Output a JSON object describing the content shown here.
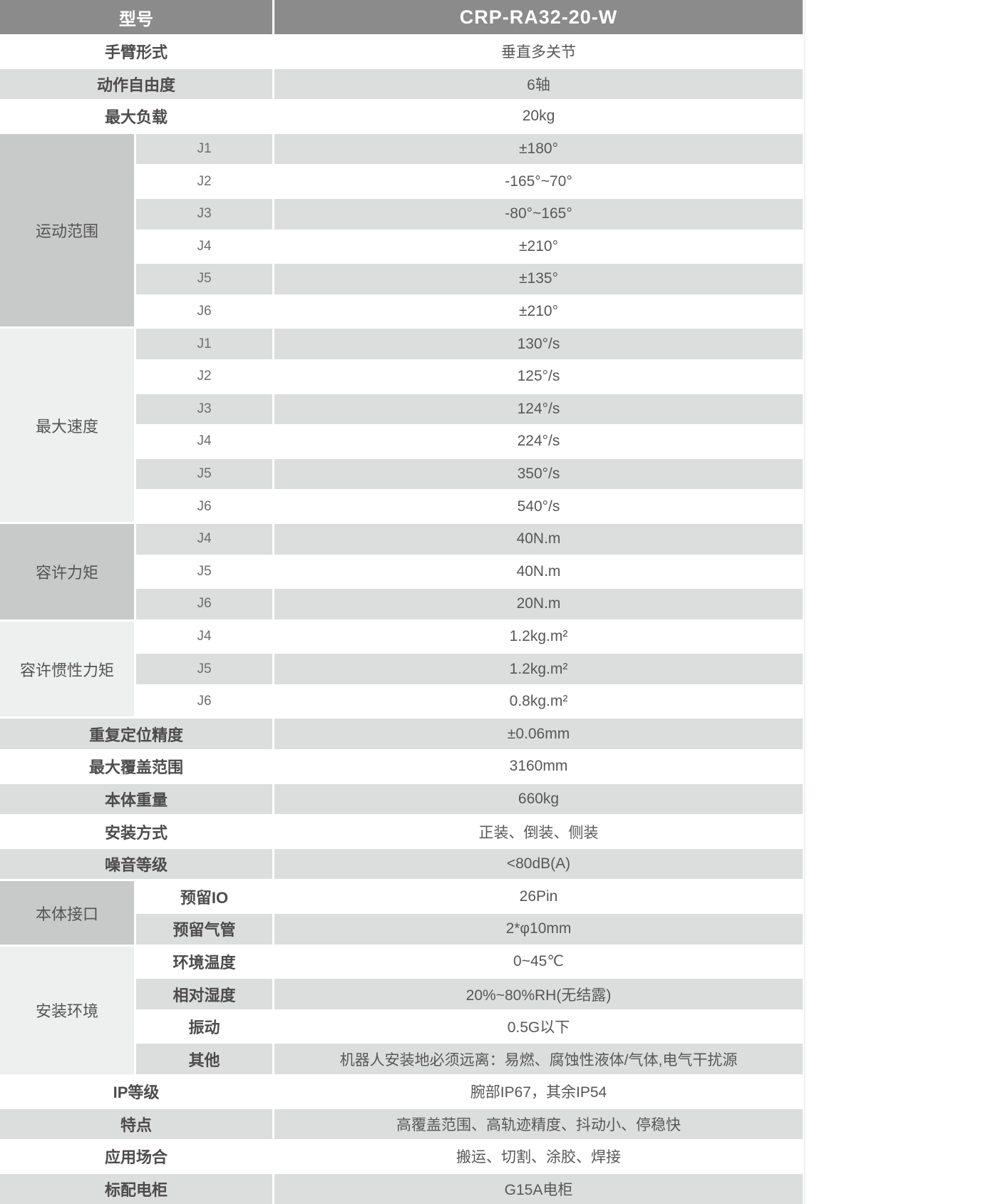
{
  "colors": {
    "header_bg": "#8b8b8b",
    "header_text": "#ffffff",
    "stripe_bg": "#dcdddd",
    "category_dark_bg": "#c8c9c9",
    "category_light_bg": "#eeefef",
    "label_text": "#4d4b4b",
    "value_text": "#595757"
  },
  "header": {
    "label": "型号",
    "value": "CRP-RA32-20-W"
  },
  "rows": {
    "arm_type": {
      "label": "手臂形式",
      "value": "垂直多关节"
    },
    "dof": {
      "label": "动作自由度",
      "value": "6轴"
    },
    "max_payload": {
      "label": "最大负载",
      "value": "20kg"
    },
    "repeatability": {
      "label": "重复定位精度",
      "value": "±0.06mm"
    },
    "max_reach": {
      "label": "最大覆盖范围",
      "value": "3160mm"
    },
    "body_weight": {
      "label": "本体重量",
      "value": "660kg"
    },
    "mounting": {
      "label": "安装方式",
      "value": "正装、倒装、侧装"
    },
    "noise": {
      "label": "噪音等级",
      "value": "<80dB(A)"
    },
    "ip_rating": {
      "label": "IP等级",
      "value": "腕部IP67，其余IP54"
    },
    "features": {
      "label": "特点",
      "value": "高覆盖范围、高轨迹精度、抖动小、停稳快"
    },
    "applications": {
      "label": "应用场合",
      "value": "搬运、切割、涂胶、焊接"
    },
    "cabinet": {
      "label": "标配电柜",
      "value": "G15A电柜"
    }
  },
  "groups": {
    "motion_range": {
      "label": "运动范围",
      "rows": [
        {
          "sub": "J1",
          "value": "±180°"
        },
        {
          "sub": "J2",
          "value": "-165°~70°"
        },
        {
          "sub": "J3",
          "value": "-80°~165°"
        },
        {
          "sub": "J4",
          "value": "±210°"
        },
        {
          "sub": "J5",
          "value": "±135°"
        },
        {
          "sub": "J6",
          "value": "±210°"
        }
      ]
    },
    "max_speed": {
      "label": "最大速度",
      "rows": [
        {
          "sub": "J1",
          "value": "130°/s"
        },
        {
          "sub": "J2",
          "value": "125°/s"
        },
        {
          "sub": "J3",
          "value": "124°/s"
        },
        {
          "sub": "J4",
          "value": "224°/s"
        },
        {
          "sub": "J5",
          "value": "350°/s"
        },
        {
          "sub": "J6",
          "value": "540°/s"
        }
      ]
    },
    "allowable_torque": {
      "label": "容许力矩",
      "rows": [
        {
          "sub": "J4",
          "value": "40N.m"
        },
        {
          "sub": "J5",
          "value": "40N.m"
        },
        {
          "sub": "J6",
          "value": "20N.m"
        }
      ]
    },
    "allowable_inertia": {
      "label": "容许惯性力矩",
      "rows": [
        {
          "sub": "J4",
          "value": "1.2kg.m²"
        },
        {
          "sub": "J5",
          "value": "1.2kg.m²"
        },
        {
          "sub": "J6",
          "value": "0.8kg.m²"
        }
      ]
    },
    "body_interface": {
      "label": "本体接口",
      "rows": [
        {
          "sub": "预留IO",
          "value": "26Pin"
        },
        {
          "sub": "预留气管",
          "value": "2*φ10mm"
        }
      ]
    },
    "install_env": {
      "label": "安装环境",
      "rows": [
        {
          "sub": "环境温度",
          "value": "0~45℃"
        },
        {
          "sub": "相对湿度",
          "value": "20%~80%RH(无结露)"
        },
        {
          "sub": "振动",
          "value": "0.5G以下"
        },
        {
          "sub": "其他",
          "value": "机器人安装地必须远离：易燃、腐蚀性液体/气体,电气干扰源"
        }
      ]
    }
  }
}
